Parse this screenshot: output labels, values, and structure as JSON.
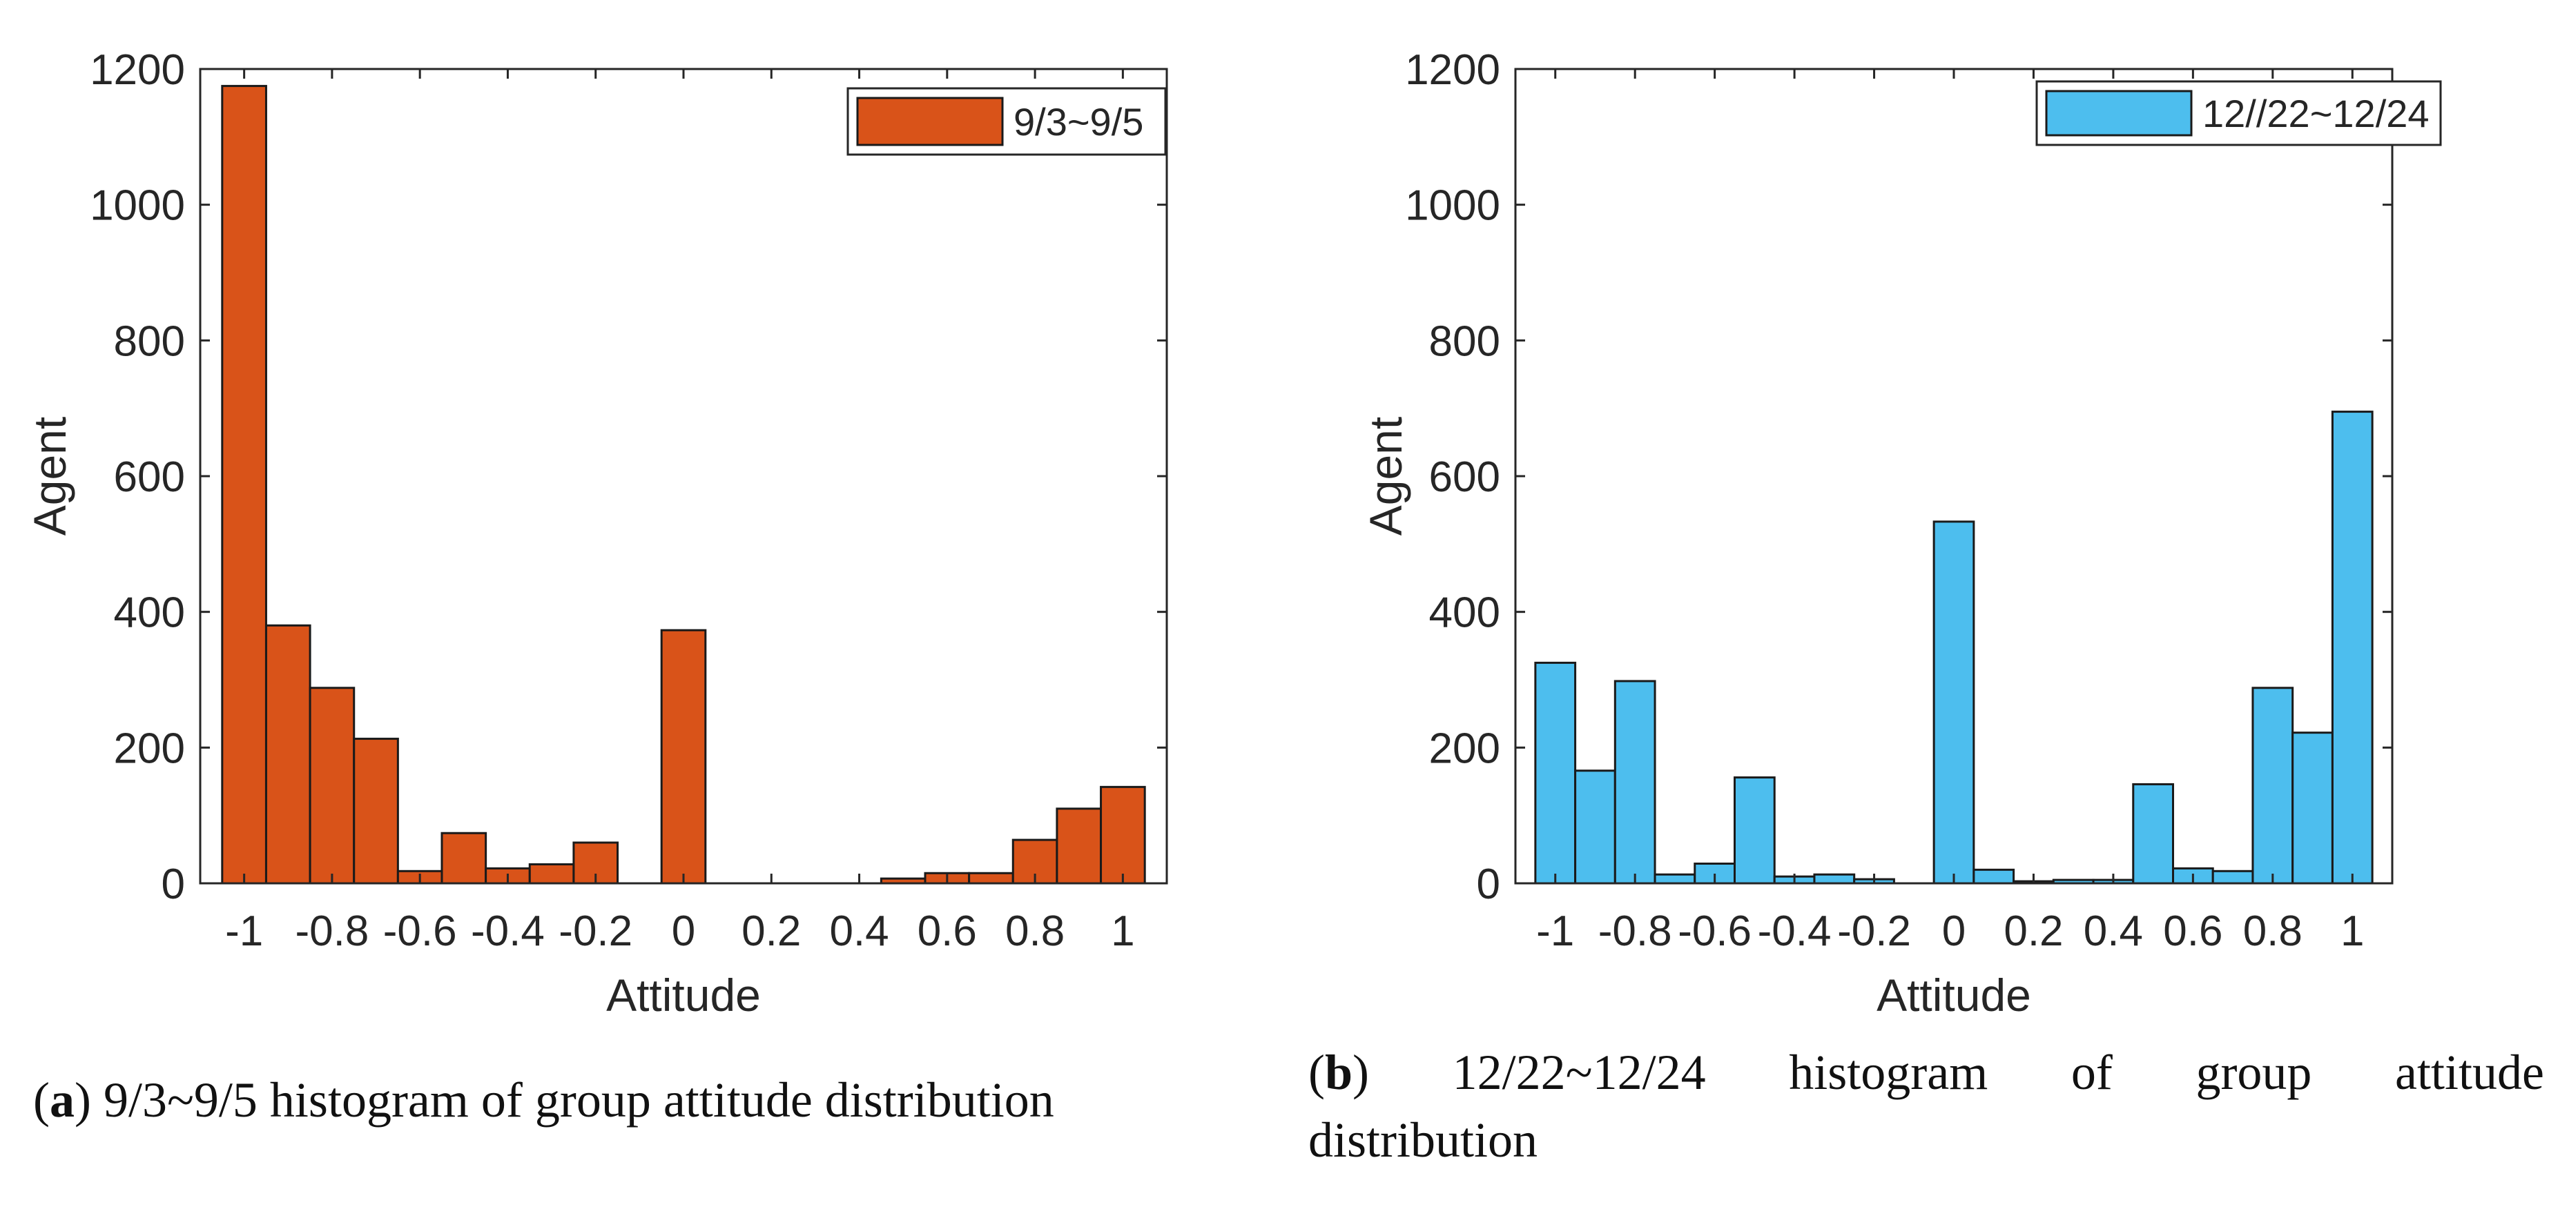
{
  "chart_data": [
    {
      "type": "bar",
      "title": "",
      "xlabel": "Attitude",
      "ylabel": "Agent",
      "xlim": [
        -1.1,
        1.1
      ],
      "ylim": [
        0,
        1200
      ],
      "xticks": [
        -1,
        -0.8,
        -0.6,
        -0.4,
        -0.2,
        0,
        0.2,
        0.4,
        0.6,
        0.8,
        1
      ],
      "xtick_labels": [
        "-1",
        "-0.8",
        "-0.6",
        "-0.4",
        "-0.2",
        "0",
        "0.2",
        "0.4",
        "0.6",
        "0.8",
        "1"
      ],
      "yticks": [
        0,
        200,
        400,
        600,
        800,
        1000,
        1200
      ],
      "ytick_labels": [
        "0",
        "200",
        "400",
        "600",
        "800",
        "1000",
        "1200"
      ],
      "bin_width": 0.1,
      "bin_centers": [
        -1,
        -0.9,
        -0.8,
        -0.7,
        -0.6,
        -0.5,
        -0.4,
        -0.3,
        -0.2,
        -0.1,
        0,
        0.1,
        0.2,
        0.3,
        0.4,
        0.5,
        0.6,
        0.7,
        0.8,
        0.9,
        1
      ],
      "series": [
        {
          "name": "9/3~9/5",
          "color": "#D95319",
          "values": [
            1175,
            380,
            288,
            213,
            18,
            74,
            22,
            28,
            60,
            0,
            373,
            0,
            0,
            0,
            0,
            7,
            15,
            15,
            64,
            110,
            142
          ]
        }
      ],
      "legend": {
        "position": "top-right",
        "label": "9/3~9/5"
      }
    },
    {
      "type": "bar",
      "title": "",
      "xlabel": "Attitude",
      "ylabel": "Agent",
      "xlim": [
        -1.1,
        1.1
      ],
      "ylim": [
        0,
        1200
      ],
      "xticks": [
        -1,
        -0.8,
        -0.6,
        -0.4,
        -0.2,
        0,
        0.2,
        0.4,
        0.6,
        0.8,
        1
      ],
      "xtick_labels": [
        "-1",
        "-0.8",
        "-0.6",
        "-0.4",
        "-0.2",
        "0",
        "0.2",
        "0.4",
        "0.6",
        "0.8",
        "1"
      ],
      "yticks": [
        0,
        200,
        400,
        600,
        800,
        1000,
        1200
      ],
      "ytick_labels": [
        "0",
        "200",
        "400",
        "600",
        "800",
        "1000",
        "1200"
      ],
      "bin_width": 0.1,
      "bin_centers": [
        -1,
        -0.9,
        -0.8,
        -0.7,
        -0.6,
        -0.5,
        -0.4,
        -0.3,
        -0.2,
        -0.1,
        0,
        0.1,
        0.2,
        0.3,
        0.4,
        0.5,
        0.6,
        0.7,
        0.8,
        0.9,
        1
      ],
      "series": [
        {
          "name": "12//22~12/24",
          "color": "#4DBEEE",
          "values": [
            325,
            166,
            298,
            13,
            29,
            156,
            10,
            13,
            6,
            0,
            533,
            20,
            3,
            5,
            5,
            146,
            22,
            18,
            288,
            222,
            695
          ]
        }
      ],
      "legend": {
        "position": "top-right",
        "label": "12//22~12/24"
      }
    }
  ],
  "captions": {
    "a": {
      "letter": "a",
      "text": " 9/3~9/5 histogram of group attitude distribution"
    },
    "b": {
      "letter": "b",
      "words": [
        "12/22~12/24",
        "histogram",
        "of",
        "group",
        "attitude"
      ],
      "line2": "distribution"
    }
  }
}
